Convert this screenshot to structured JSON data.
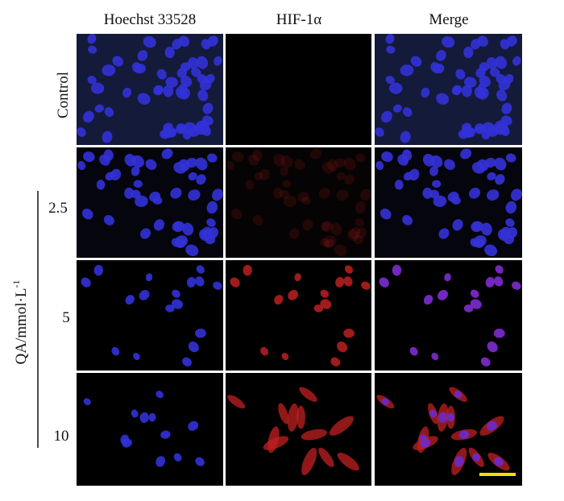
{
  "columns": [
    "Hoechst 33528",
    "HIF-1α",
    "Merge"
  ],
  "rows": [
    "Control",
    "2.5",
    "5",
    "10"
  ],
  "axis_label": {
    "text": "QA/mmol·L",
    "superscript": "-1"
  }
}
